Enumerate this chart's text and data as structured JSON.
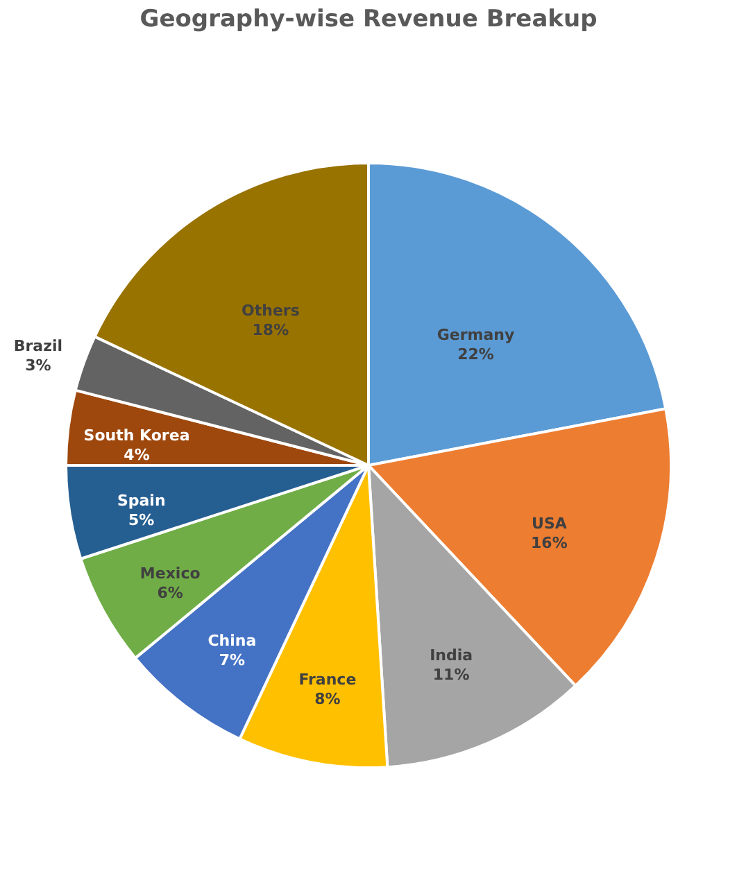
{
  "chart_data": {
    "type": "pie",
    "title": "Geography-wise Revenue Breakup",
    "categories": [
      "Germany",
      "USA",
      "India",
      "France",
      "China",
      "Mexico",
      "Spain",
      "South Korea",
      "Brazil",
      "Others"
    ],
    "values": [
      22,
      16,
      11,
      8,
      7,
      6,
      5,
      4,
      3,
      18
    ],
    "value_labels": [
      "22%",
      "16%",
      "11%",
      "8%",
      "7%",
      "6%",
      "5%",
      "4%",
      "3%",
      "18%"
    ],
    "colors": [
      "#5b9bd5",
      "#ed7d31",
      "#a5a5a5",
      "#ffc000",
      "#4472c4",
      "#70ad47",
      "#255e91",
      "#9e480e",
      "#636363",
      "#997300"
    ],
    "legend": false
  }
}
